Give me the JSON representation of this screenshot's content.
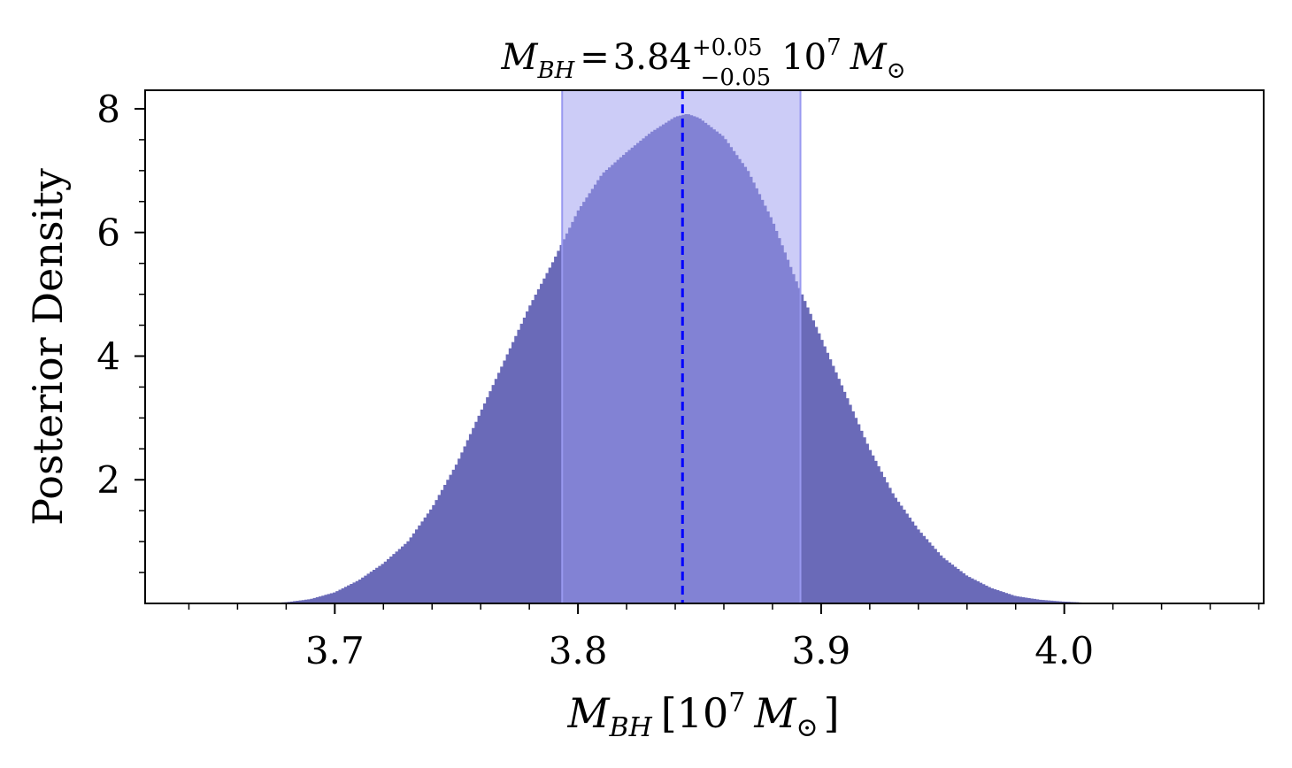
{
  "chart_data": {
    "type": "area",
    "title": {
      "symbol": "M",
      "subscript": "BH",
      "equals": "=",
      "value": "3.84",
      "upper": "+0.05",
      "lower": "−0.05",
      "unit_base": "10",
      "unit_exp": "7",
      "unit_symbol": "M",
      "unit_sub": "⊙"
    },
    "xlabel": {
      "symbol": "M",
      "subscript": "BH",
      "open": "[",
      "unit_base": "10",
      "unit_exp": "7",
      "unit_symbol": "M",
      "unit_sub": "⊙",
      "close": "]"
    },
    "ylabel": "Posterior Density",
    "xlim": [
      3.622,
      4.082
    ],
    "ylim": [
      0,
      8.3
    ],
    "xticks": [
      {
        "value": 3.7,
        "label": "3.7"
      },
      {
        "value": 3.8,
        "label": "3.8"
      },
      {
        "value": 3.9,
        "label": "3.9"
      },
      {
        "value": 4.0,
        "label": "4.0"
      }
    ],
    "yticks": [
      {
        "value": 2,
        "label": "2"
      },
      {
        "value": 4,
        "label": "4"
      },
      {
        "value": 6,
        "label": "6"
      },
      {
        "value": 8,
        "label": "8"
      }
    ],
    "x_minor_step": 0.02,
    "y_minor_step": 0.5,
    "median": 3.843,
    "credible_interval": [
      3.7935,
      3.8915
    ],
    "series": [
      {
        "x": [
          3.67,
          3.68,
          3.69,
          3.7,
          3.71,
          3.72,
          3.73,
          3.74,
          3.75,
          3.76,
          3.77,
          3.78,
          3.79,
          3.8,
          3.81,
          3.82,
          3.83,
          3.84,
          3.845,
          3.85,
          3.86,
          3.87,
          3.88,
          3.89,
          3.9,
          3.91,
          3.92,
          3.93,
          3.94,
          3.95,
          3.96,
          3.97,
          3.98,
          3.99,
          4.0,
          4.01,
          4.02
        ],
        "y": [
          0.0,
          0.02,
          0.07,
          0.18,
          0.38,
          0.65,
          1.0,
          1.55,
          2.25,
          3.1,
          3.95,
          4.8,
          5.55,
          6.35,
          6.95,
          7.3,
          7.62,
          7.87,
          7.92,
          7.85,
          7.55,
          7.0,
          6.2,
          5.2,
          4.3,
          3.4,
          2.5,
          1.75,
          1.2,
          0.75,
          0.45,
          0.25,
          0.12,
          0.06,
          0.03,
          0.01,
          0.0
        ]
      }
    ],
    "colors": {
      "distribution": "#6a6ab8",
      "interval": "#9999f0",
      "median_line": "#0000ff",
      "axes": "#000000"
    }
  }
}
